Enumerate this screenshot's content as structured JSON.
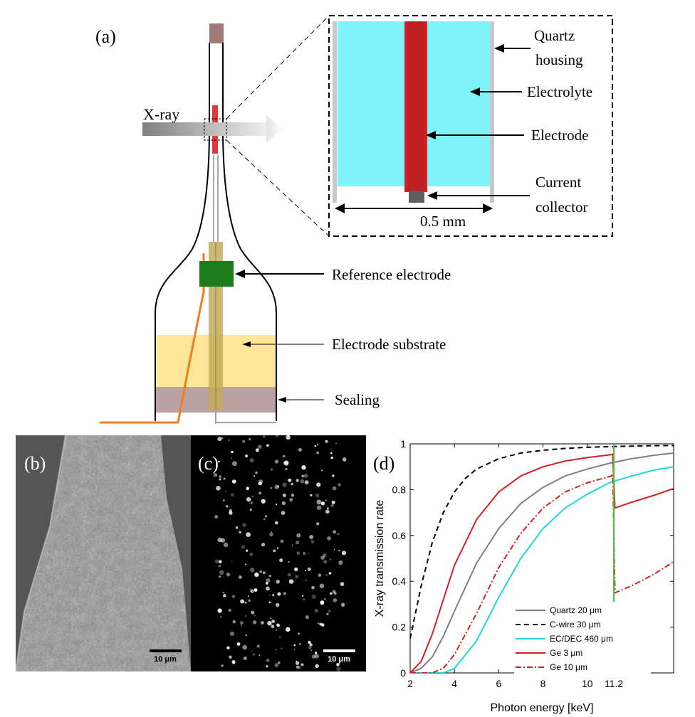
{
  "panel_a": {
    "label": "(a)",
    "xray_label": "X-ray",
    "annotations": {
      "quartz_housing": [
        "Quartz",
        "housing"
      ],
      "electrolyte": "Electrolyte",
      "electrode": "Electrode",
      "current_collector": [
        "Current",
        "collector"
      ],
      "width": "0.5 mm",
      "reference_electrode": "Reference electrode",
      "electrode_substrate": "Electrode substrate",
      "sealing": "Sealing"
    },
    "colors": {
      "electrolyte": "#80f4f8",
      "electrode": "#d02224",
      "quartz": "#c8c8c8",
      "collector": "#606060",
      "reference_electrode": "#1a7d1a",
      "substrate": "#fce699",
      "sealing": "#bba1a4",
      "wire": "#f07d21",
      "rod": "#c4ab5a",
      "cap": "#9e7b78"
    }
  },
  "panel_b": {
    "label": "(b)",
    "scalebar": "10 μm"
  },
  "panel_c": {
    "label": "(c)",
    "scalebar": "10 μm"
  },
  "panel_d": {
    "label": "(d)"
  },
  "chart_data": {
    "type": "line",
    "xlabel": "Photon energy [keV]",
    "ylabel": "X-ray transmission rate",
    "xlim": [
      2,
      13.9
    ],
    "ylim": [
      0,
      1
    ],
    "xticks": [
      2,
      4,
      6,
      8,
      10,
      11.2
    ],
    "xtick_labels": [
      "2",
      "4",
      "6",
      "8",
      "10",
      "11.2"
    ],
    "yticks": [
      0,
      0.2,
      0.4,
      0.6,
      0.8,
      1
    ],
    "ytick_labels": [
      "0",
      "0.2",
      "0.4",
      "0.6",
      "0.8",
      "1"
    ],
    "marker_line": {
      "x": 11.2,
      "color": "#3cc83c"
    },
    "legend_position": "bottom-right",
    "series": [
      {
        "name": "Quartz 20 μm",
        "color": "#808080",
        "dash": "solid",
        "x": [
          2,
          2.5,
          3,
          3.5,
          4,
          5,
          6,
          7,
          8,
          9,
          10,
          11,
          12,
          13,
          13.9
        ],
        "y": [
          0.0,
          0.02,
          0.07,
          0.16,
          0.27,
          0.48,
          0.63,
          0.74,
          0.81,
          0.86,
          0.89,
          0.915,
          0.935,
          0.95,
          0.96
        ]
      },
      {
        "name": "C-wire 30 μm",
        "color": "#000000",
        "dash": "dash",
        "x": [
          2,
          2.5,
          3,
          3.5,
          4,
          4.5,
          5,
          6,
          7,
          8,
          9,
          10,
          11,
          12,
          13,
          13.9
        ],
        "y": [
          0.15,
          0.38,
          0.57,
          0.7,
          0.79,
          0.85,
          0.89,
          0.935,
          0.96,
          0.972,
          0.98,
          0.985,
          0.988,
          0.99,
          0.992,
          0.993
        ]
      },
      {
        "name": "EC/DEC 460 μm",
        "color": "#22d4e4",
        "dash": "solid",
        "x": [
          2,
          3,
          3.5,
          4,
          5,
          6,
          7,
          8,
          9,
          10,
          11,
          12,
          13,
          13.9
        ],
        "y": [
          0.0,
          0.0,
          0.0,
          0.02,
          0.14,
          0.33,
          0.5,
          0.63,
          0.72,
          0.78,
          0.83,
          0.86,
          0.885,
          0.9
        ]
      },
      {
        "name": "Ge 3 μm",
        "color": "#d42020",
        "dash": "solid",
        "x": [
          2,
          2.5,
          3,
          3.5,
          4,
          5,
          6,
          7,
          8,
          9,
          10,
          11.1,
          11.15,
          11.25,
          12,
          13,
          13.9
        ],
        "y": [
          0.0,
          0.05,
          0.17,
          0.32,
          0.47,
          0.67,
          0.79,
          0.86,
          0.9,
          0.925,
          0.94,
          0.953,
          0.955,
          0.72,
          0.745,
          0.775,
          0.805
        ]
      },
      {
        "name": "Ge 10 μm",
        "color": "#d42020",
        "dash": "dashdot",
        "x": [
          2,
          3,
          3.5,
          4,
          5,
          6,
          7,
          8,
          9,
          10,
          11.1,
          11.15,
          11.25,
          12,
          13,
          13.9
        ],
        "y": [
          0.0,
          0.0,
          0.02,
          0.08,
          0.26,
          0.46,
          0.61,
          0.72,
          0.79,
          0.83,
          0.86,
          0.87,
          0.35,
          0.38,
          0.43,
          0.485
        ]
      }
    ]
  }
}
